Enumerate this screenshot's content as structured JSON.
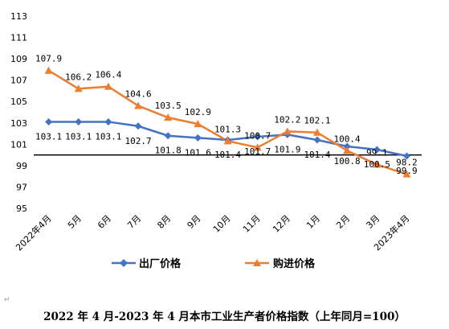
{
  "chart_data": {
    "type": "line",
    "categories": [
      "2022年4月",
      "5月",
      "6月",
      "7月",
      "8月",
      "9月",
      "10月",
      "11月",
      "12月",
      "1月",
      "2月",
      "3月",
      "2023年4月"
    ],
    "series": [
      {
        "name": "出厂价格",
        "color": "#4472C4",
        "marker": "diamond",
        "values": [
          103.1,
          103.1,
          103.1,
          102.7,
          101.8,
          101.6,
          101.4,
          101.7,
          101.9,
          101.4,
          100.8,
          100.5,
          99.9
        ],
        "labels": [
          "103.1",
          "103.1",
          "103.1",
          "102.7",
          "101.8",
          "101.6",
          "101.4",
          "101.7",
          "101.9",
          "101.4",
          "100.8",
          "100.5",
          "99.9"
        ]
      },
      {
        "name": "购进价格",
        "color": "#ED7D31",
        "marker": "triangle",
        "values": [
          107.9,
          106.2,
          106.4,
          104.6,
          103.5,
          102.9,
          101.3,
          100.7,
          102.2,
          102.1,
          100.4,
          99.1,
          98.2
        ],
        "labels": [
          "107.9",
          "106.2",
          "106.4",
          "104.6",
          "103.5",
          "102.9",
          "101.3",
          "100.7",
          "102.2",
          "102.1",
          "100.4",
          "99.1",
          "98.2"
        ]
      }
    ],
    "yticks": [
      "95",
      "97",
      "99",
      "101",
      "103",
      "105",
      "107",
      "109",
      "111",
      "113"
    ],
    "ylim": [
      95,
      113
    ],
    "baseline": 100,
    "legend_position": "bottom"
  },
  "caption": "2022 年 4 月-2023 年 4 月本市工业生产者价格指数（上年同月=100）",
  "paragraph_mark": "↵"
}
